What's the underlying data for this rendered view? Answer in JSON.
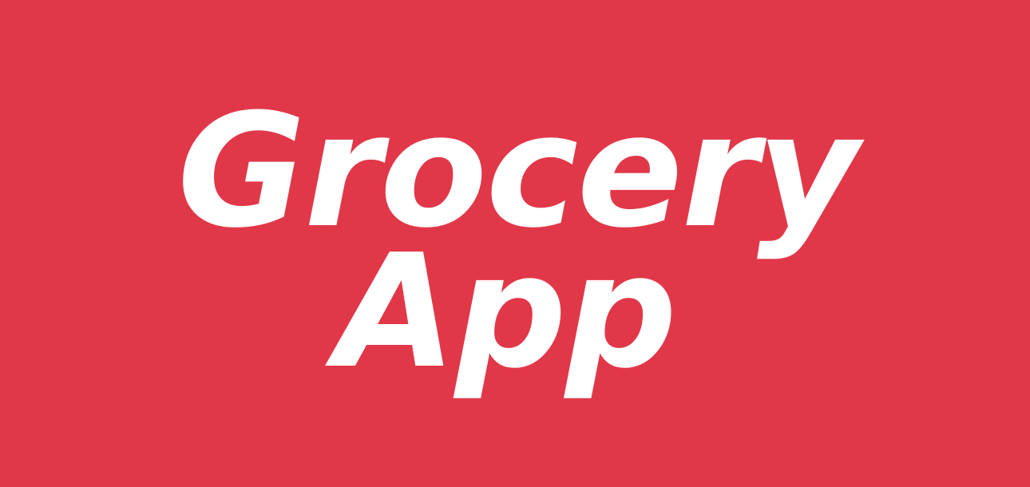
{
  "banner": {
    "background_color": "#e13849",
    "text_color": "#ffffff",
    "title_lines": [
      "Grocery",
      "App"
    ]
  }
}
